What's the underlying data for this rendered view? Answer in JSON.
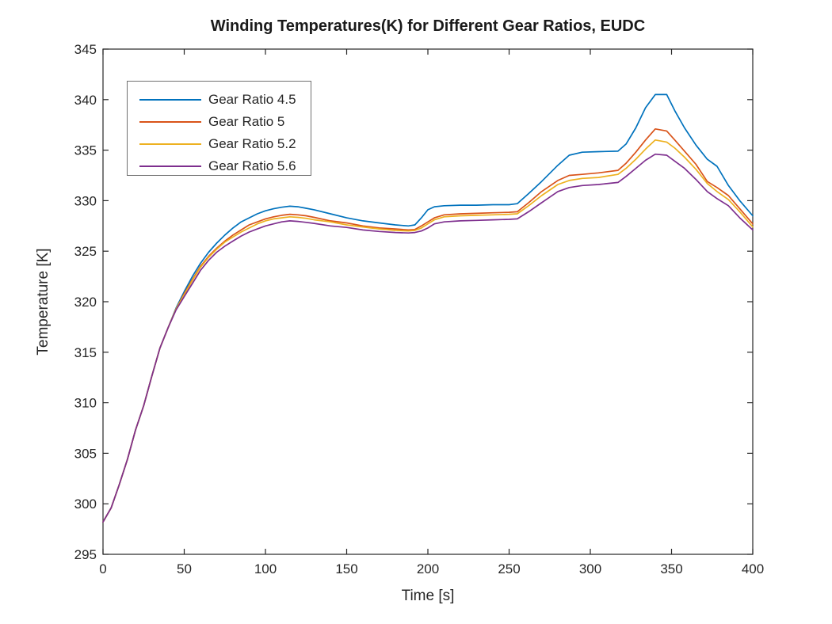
{
  "figure": {
    "background": "#ffffff",
    "axis_color": "#262626",
    "text_color": "#262626"
  },
  "chart_data": {
    "type": "line",
    "title": "Winding Temperatures(K) for Different Gear Ratios, EUDC",
    "xlabel": "Time [s]",
    "ylabel": "Temperature [K]",
    "xlim": [
      0,
      400
    ],
    "ylim": [
      295,
      345
    ],
    "xticks": [
      0,
      50,
      100,
      150,
      200,
      250,
      300,
      350,
      400
    ],
    "yticks": [
      295,
      300,
      305,
      310,
      315,
      320,
      325,
      330,
      335,
      340,
      345
    ],
    "grid": false,
    "legend_position": "upper-left-inside",
    "x": [
      0,
      5,
      10,
      15,
      20,
      25,
      30,
      35,
      40,
      45,
      50,
      55,
      60,
      65,
      70,
      75,
      80,
      85,
      90,
      95,
      100,
      105,
      110,
      115,
      120,
      125,
      130,
      140,
      150,
      160,
      170,
      180,
      188,
      192,
      196,
      200,
      204,
      210,
      220,
      230,
      240,
      250,
      255,
      262,
      270,
      280,
      287,
      295,
      305,
      317,
      322,
      328,
      334,
      340,
      347,
      352,
      358,
      365,
      372,
      378,
      385,
      392,
      400
    ],
    "series": [
      {
        "name": "Gear Ratio 4.5",
        "color": "#0072BD",
        "values": [
          298.2,
          299.6,
          301.9,
          304.4,
          307.3,
          309.7,
          312.6,
          315.4,
          317.4,
          319.4,
          321.0,
          322.5,
          323.8,
          324.9,
          325.8,
          326.6,
          327.3,
          327.9,
          328.3,
          328.7,
          329.0,
          329.2,
          329.35,
          329.45,
          329.4,
          329.25,
          329.1,
          328.7,
          328.3,
          328.0,
          327.8,
          327.6,
          327.5,
          327.6,
          328.3,
          329.1,
          329.4,
          329.5,
          329.55,
          329.55,
          329.6,
          329.6,
          329.7,
          330.7,
          331.9,
          333.5,
          334.5,
          334.8,
          334.85,
          334.9,
          335.6,
          337.2,
          339.2,
          340.5,
          340.5,
          338.9,
          337.2,
          335.5,
          334.1,
          333.4,
          331.5,
          330.0,
          328.5
        ]
      },
      {
        "name": "Gear Ratio 5",
        "color": "#D95319",
        "values": [
          298.2,
          299.6,
          301.9,
          304.4,
          307.3,
          309.7,
          312.6,
          315.4,
          317.4,
          319.3,
          320.8,
          322.2,
          323.5,
          324.5,
          325.3,
          326.0,
          326.6,
          327.1,
          327.6,
          327.9,
          328.2,
          328.4,
          328.55,
          328.65,
          328.6,
          328.5,
          328.35,
          328.0,
          327.8,
          327.5,
          327.3,
          327.2,
          327.1,
          327.15,
          327.5,
          327.9,
          328.3,
          328.6,
          328.7,
          328.75,
          328.8,
          328.85,
          328.9,
          329.8,
          330.9,
          332.0,
          332.5,
          332.6,
          332.75,
          333.0,
          333.7,
          334.8,
          336.0,
          337.1,
          336.9,
          336.0,
          334.9,
          333.6,
          331.9,
          331.3,
          330.5,
          329.2,
          327.7
        ]
      },
      {
        "name": "Gear Ratio 5.2",
        "color": "#EDB120",
        "values": [
          298.2,
          299.6,
          301.9,
          304.4,
          307.3,
          309.7,
          312.6,
          315.4,
          317.4,
          319.3,
          320.7,
          322.1,
          323.4,
          324.4,
          325.2,
          325.9,
          326.4,
          326.9,
          327.3,
          327.7,
          328.0,
          328.2,
          328.3,
          328.4,
          328.35,
          328.25,
          328.1,
          327.9,
          327.6,
          327.4,
          327.2,
          327.05,
          327.0,
          327.05,
          327.3,
          327.7,
          328.1,
          328.4,
          328.5,
          328.55,
          328.6,
          328.65,
          328.7,
          329.5,
          330.5,
          331.6,
          332.0,
          332.2,
          332.3,
          332.6,
          333.2,
          334.1,
          335.1,
          336.0,
          335.8,
          335.2,
          334.3,
          333.1,
          331.7,
          330.9,
          330.1,
          328.9,
          327.4
        ]
      },
      {
        "name": "Gear Ratio 5.6",
        "color": "#7E2F8E",
        "values": [
          298.2,
          299.6,
          301.9,
          304.4,
          307.3,
          309.7,
          312.6,
          315.4,
          317.4,
          319.2,
          320.5,
          321.8,
          323.1,
          324.1,
          324.9,
          325.5,
          326.0,
          326.5,
          326.9,
          327.2,
          327.5,
          327.7,
          327.9,
          328.0,
          327.95,
          327.85,
          327.75,
          327.5,
          327.35,
          327.1,
          326.95,
          326.85,
          326.8,
          326.85,
          327.0,
          327.3,
          327.7,
          327.9,
          328.0,
          328.05,
          328.1,
          328.15,
          328.2,
          328.9,
          329.8,
          330.9,
          331.3,
          331.5,
          331.6,
          331.8,
          332.4,
          333.2,
          334.0,
          334.6,
          334.5,
          333.9,
          333.2,
          332.1,
          330.9,
          330.2,
          329.5,
          328.3,
          327.1
        ]
      }
    ]
  }
}
